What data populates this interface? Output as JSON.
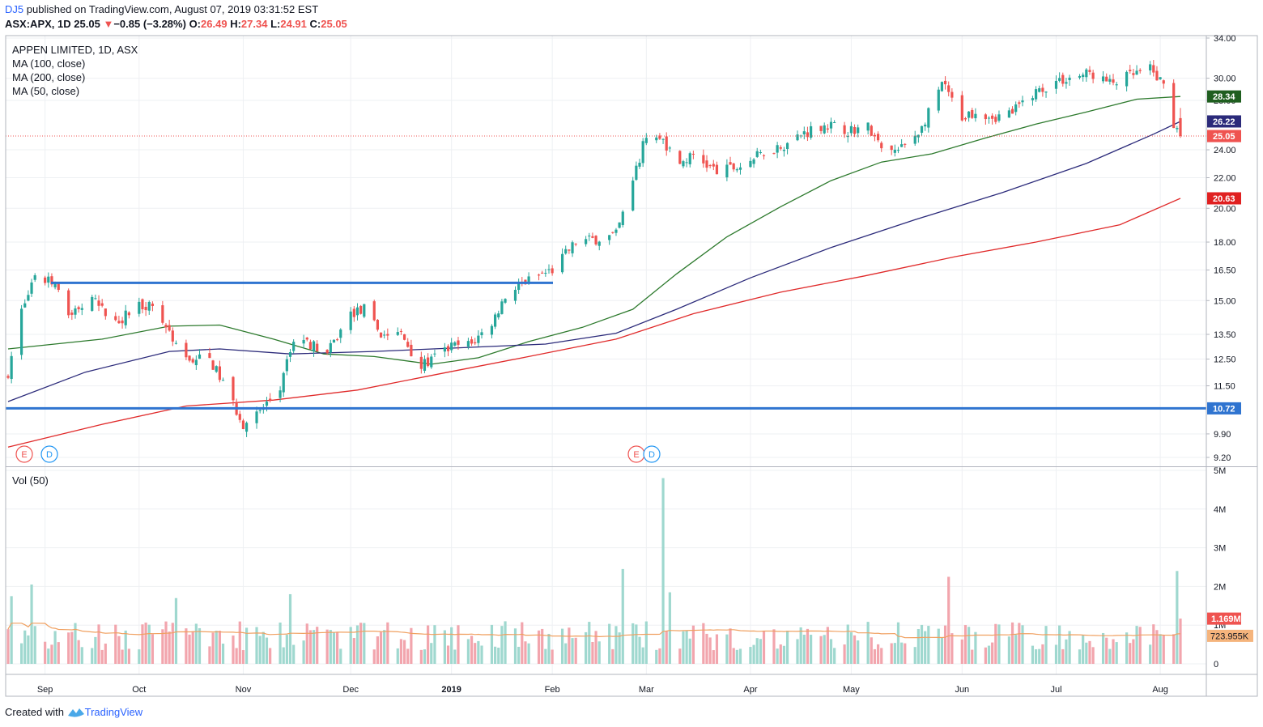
{
  "header": {
    "user": "DJ5",
    "published_text": "published on TradingView.com, August 07, 2019 03:31:52 EST",
    "symbol_line": "ASX:APX, 1D",
    "price": "25.05",
    "change_arrow": "▼",
    "change": "−0.85 (−3.28%)",
    "o_label": "O:",
    "o_value": "26.49",
    "h_label": "H:",
    "h_value": "27.34",
    "l_label": "L:",
    "l_value": "24.91",
    "c_label": "C:",
    "c_value": "25.05"
  },
  "legend": {
    "title": "APPEN LIMITED, 1D, ASX",
    "ma1": "MA (100, close)",
    "ma2": "MA (200, close)",
    "ma3": "MA (50, close)"
  },
  "volume_label": "Vol (50)",
  "footer": {
    "created_with": "Created with",
    "brand": "TradingView"
  },
  "colors": {
    "up": "#26a69a",
    "down": "#ef5350",
    "up_vol": "#9fd8cf",
    "down_vol": "#f2a5ad",
    "ma50": "#2d7a2d",
    "ma100": "#2b2a7a",
    "ma200": "#e02a2a",
    "vol_ma": "#f0a060",
    "hline": "#2f74d0",
    "grid": "#eef0f3"
  },
  "chart_data": {
    "type": "candlestick",
    "price_scale": "log",
    "price_axis_ticks": [
      "34.00",
      "30.00",
      "28.00",
      "24.00",
      "22.00",
      "20.00",
      "18.00",
      "16.50",
      "15.00",
      "13.50",
      "12.50",
      "11.50",
      "9.90",
      "9.20"
    ],
    "volume_axis_ticks": [
      "5M",
      "4M",
      "3M",
      "2M",
      "1M",
      "0"
    ],
    "time_axis_labels": [
      {
        "label": "Sep",
        "date": "2018-09-03"
      },
      {
        "label": "Oct",
        "date": "2018-10-01"
      },
      {
        "label": "Nov",
        "date": "2018-11-01"
      },
      {
        "label": "Dec",
        "date": "2018-12-03"
      },
      {
        "label": "2019",
        "date": "2019-01-02"
      },
      {
        "label": "Feb",
        "date": "2019-02-01"
      },
      {
        "label": "Mar",
        "date": "2019-03-01"
      },
      {
        "label": "Apr",
        "date": "2019-04-01"
      },
      {
        "label": "May",
        "date": "2019-05-01"
      },
      {
        "label": "Jun",
        "date": "2019-06-03"
      },
      {
        "label": "Jul",
        "date": "2019-07-01"
      },
      {
        "label": "Aug",
        "date": "2019-08-01"
      }
    ],
    "date_range": [
      "2018-08-23",
      "2019-08-07"
    ],
    "close_path": [
      [
        "2018-08-23",
        12.0
      ],
      [
        "2018-08-27",
        14.6
      ],
      [
        "2018-08-31",
        16.0
      ],
      [
        "2018-09-05",
        15.9
      ],
      [
        "2018-09-10",
        14.4
      ],
      [
        "2018-09-17",
        15.0
      ],
      [
        "2018-09-24",
        14.0
      ],
      [
        "2018-10-01",
        14.8
      ],
      [
        "2018-10-05",
        14.8
      ],
      [
        "2018-10-10",
        13.6
      ],
      [
        "2018-10-15",
        12.5
      ],
      [
        "2018-10-22",
        12.5
      ],
      [
        "2018-10-26",
        11.6
      ],
      [
        "2018-11-01",
        10.2
      ],
      [
        "2018-11-06",
        10.6
      ],
      [
        "2018-11-12",
        11.4
      ],
      [
        "2018-11-16",
        13.3
      ],
      [
        "2018-11-20",
        13.2
      ],
      [
        "2018-11-26",
        12.7
      ],
      [
        "2018-12-03",
        14.4
      ],
      [
        "2018-12-07",
        14.6
      ],
      [
        "2018-12-12",
        13.5
      ],
      [
        "2018-12-18",
        13.5
      ],
      [
        "2018-12-24",
        12.2
      ],
      [
        "2019-01-02",
        13.0
      ],
      [
        "2019-01-08",
        13.1
      ],
      [
        "2019-01-14",
        14.0
      ],
      [
        "2019-01-18",
        15.2
      ],
      [
        "2019-01-24",
        15.9
      ],
      [
        "2019-02-01",
        16.5
      ],
      [
        "2019-02-08",
        18.0
      ],
      [
        "2019-02-15",
        18.2
      ],
      [
        "2019-02-20",
        18.4
      ],
      [
        "2019-02-25",
        21.6
      ],
      [
        "2019-03-01",
        25.2
      ],
      [
        "2019-03-06",
        24.7
      ],
      [
        "2019-03-11",
        23.0
      ],
      [
        "2019-03-15",
        23.6
      ],
      [
        "2019-03-22",
        22.4
      ],
      [
        "2019-03-29",
        22.8
      ],
      [
        "2019-04-05",
        23.8
      ],
      [
        "2019-04-12",
        24.5
      ],
      [
        "2019-04-17",
        25.3
      ],
      [
        "2019-04-23",
        26.0
      ],
      [
        "2019-04-30",
        25.5
      ],
      [
        "2019-05-06",
        25.8
      ],
      [
        "2019-05-10",
        24.0
      ],
      [
        "2019-05-15",
        23.9
      ],
      [
        "2019-05-22",
        25.7
      ],
      [
        "2019-05-28",
        29.5
      ],
      [
        "2019-06-03",
        26.6
      ],
      [
        "2019-06-07",
        27.1
      ],
      [
        "2019-06-13",
        26.6
      ],
      [
        "2019-06-18",
        27.0
      ],
      [
        "2019-06-24",
        28.6
      ],
      [
        "2019-07-01",
        29.7
      ],
      [
        "2019-07-05",
        30.0
      ],
      [
        "2019-07-11",
        30.5
      ],
      [
        "2019-07-17",
        29.5
      ],
      [
        "2019-07-23",
        30.2
      ],
      [
        "2019-07-29",
        30.8
      ],
      [
        "2019-08-02",
        29.4
      ],
      [
        "2019-08-05",
        26.0
      ],
      [
        "2019-08-06",
        25.9
      ],
      [
        "2019-08-07",
        25.05
      ]
    ],
    "horizontal_lines": [
      15.85,
      10.72
    ],
    "ma_labels": {
      "ma50": 28.34,
      "ma100": 26.22,
      "last_price": 25.05,
      "ma200": 20.63,
      "hline": 10.72
    },
    "series": [
      {
        "name": "MA (50, close)",
        "points": [
          [
            "2018-08-23",
            12.9
          ],
          [
            "2018-09-20",
            13.3
          ],
          [
            "2018-10-10",
            13.85
          ],
          [
            "2018-10-25",
            13.9
          ],
          [
            "2018-11-10",
            13.3
          ],
          [
            "2018-11-25",
            12.7
          ],
          [
            "2018-12-10",
            12.6
          ],
          [
            "2018-12-27",
            12.3
          ],
          [
            "2019-01-10",
            12.55
          ],
          [
            "2019-01-25",
            13.2
          ],
          [
            "2019-02-10",
            13.8
          ],
          [
            "2019-02-25",
            14.6
          ],
          [
            "2019-03-10",
            16.3
          ],
          [
            "2019-03-25",
            18.3
          ],
          [
            "2019-04-10",
            20.1
          ],
          [
            "2019-04-25",
            21.8
          ],
          [
            "2019-05-10",
            23.1
          ],
          [
            "2019-05-25",
            23.7
          ],
          [
            "2019-06-10",
            24.9
          ],
          [
            "2019-06-25",
            26.0
          ],
          [
            "2019-07-10",
            27.0
          ],
          [
            "2019-07-25",
            28.1
          ],
          [
            "2019-08-07",
            28.34
          ]
        ]
      },
      {
        "name": "MA (100, close)",
        "points": [
          [
            "2018-08-23",
            10.95
          ],
          [
            "2018-09-15",
            12.0
          ],
          [
            "2018-10-10",
            12.8
          ],
          [
            "2018-10-25",
            12.9
          ],
          [
            "2018-11-15",
            12.7
          ],
          [
            "2018-12-10",
            12.8
          ],
          [
            "2019-01-05",
            12.95
          ],
          [
            "2019-01-30",
            13.1
          ],
          [
            "2019-02-20",
            13.55
          ],
          [
            "2019-03-10",
            14.6
          ],
          [
            "2019-04-01",
            16.1
          ],
          [
            "2019-04-25",
            17.7
          ],
          [
            "2019-05-20",
            19.3
          ],
          [
            "2019-06-15",
            21.0
          ],
          [
            "2019-07-10",
            23.0
          ],
          [
            "2019-07-30",
            25.2
          ],
          [
            "2019-08-07",
            26.22
          ]
        ]
      },
      {
        "name": "MA (200, close)",
        "points": [
          [
            "2018-08-23",
            9.5
          ],
          [
            "2018-09-20",
            10.2
          ],
          [
            "2018-10-15",
            10.8
          ],
          [
            "2018-11-10",
            11.0
          ],
          [
            "2018-12-05",
            11.35
          ],
          [
            "2019-01-01",
            12.0
          ],
          [
            "2019-01-25",
            12.6
          ],
          [
            "2019-02-20",
            13.3
          ],
          [
            "2019-03-15",
            14.4
          ],
          [
            "2019-04-10",
            15.4
          ],
          [
            "2019-05-05",
            16.2
          ],
          [
            "2019-06-01",
            17.2
          ],
          [
            "2019-06-25",
            18.0
          ],
          [
            "2019-07-20",
            19.0
          ],
          [
            "2019-08-07",
            20.63
          ]
        ]
      }
    ],
    "volume": {
      "last_value_label": "1.169M",
      "ma_value_label": "723.955K",
      "spikes": [
        [
          "2018-08-24",
          1.75
        ],
        [
          "2018-08-30",
          2.05
        ],
        [
          "2018-10-12",
          1.7
        ],
        [
          "2018-11-15",
          1.8
        ],
        [
          "2019-01-18",
          1.1
        ],
        [
          "2019-02-22",
          2.45
        ],
        [
          "2019-03-06",
          4.8
        ],
        [
          "2019-03-08",
          1.85
        ],
        [
          "2019-05-30",
          2.25
        ],
        [
          "2019-08-06",
          2.4
        ],
        [
          "2019-08-07",
          1.169
        ]
      ],
      "typical_range": [
        0.4,
        1.1
      ]
    }
  }
}
